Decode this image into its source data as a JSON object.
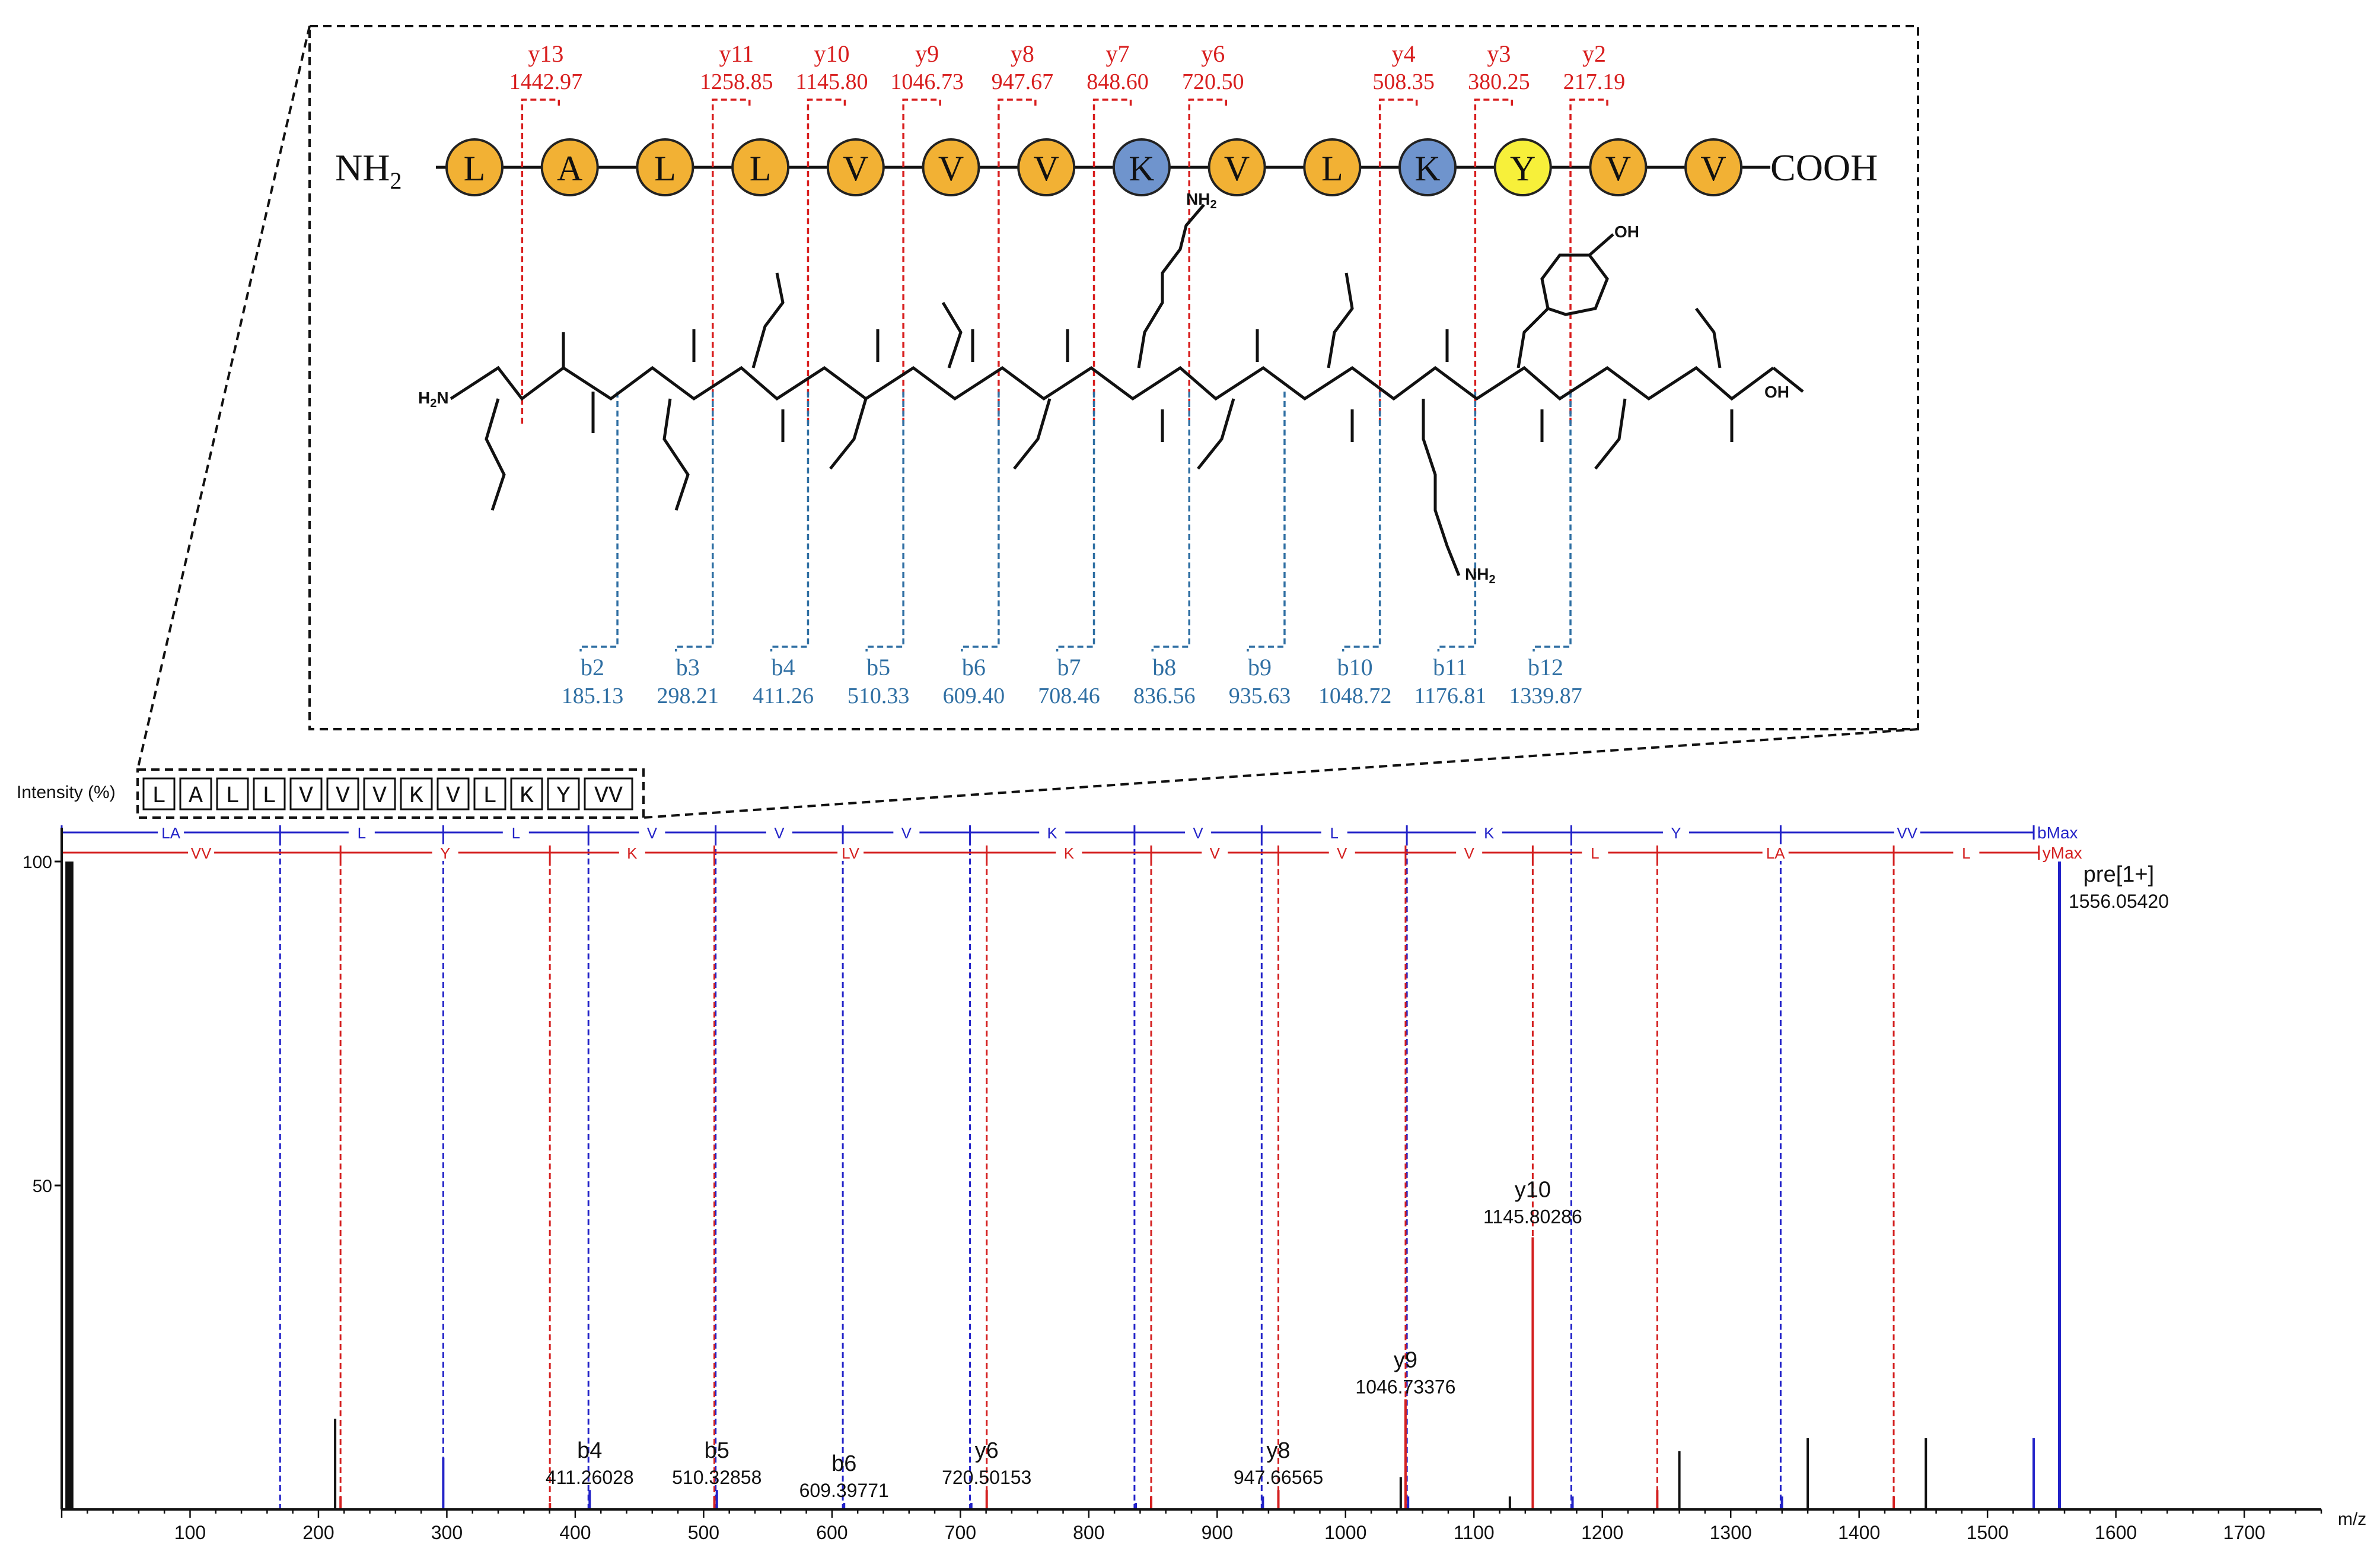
{
  "colors": {
    "y_ion": "#d81e1e",
    "b_ion": "#2f6fa3",
    "b_line": "#2323c8",
    "y_line": "#d42020",
    "peak": "#111111",
    "hydrophobic": "#f2b134",
    "basic": "#6f94cd",
    "aromatic": "#f7f03a"
  },
  "peptide": {
    "n_term": "NH",
    "n_term_sub": "2",
    "c_term": "COOH",
    "residues": [
      "L",
      "A",
      "L",
      "L",
      "V",
      "V",
      "V",
      "K",
      "V",
      "L",
      "K",
      "Y",
      "V",
      "V"
    ],
    "residue_kinds": [
      "hydrophobic",
      "hydrophobic",
      "hydrophobic",
      "hydrophobic",
      "hydrophobic",
      "hydrophobic",
      "hydrophobic",
      "basic",
      "hydrophobic",
      "hydrophobic",
      "basic",
      "aromatic",
      "hydrophobic",
      "hydrophobic"
    ]
  },
  "y_ions": [
    {
      "label": "y13",
      "mz": "1442.97",
      "after": 1
    },
    {
      "label": "y11",
      "mz": "1258.85",
      "after": 3
    },
    {
      "label": "y10",
      "mz": "1145.80",
      "after": 4
    },
    {
      "label": "y9",
      "mz": "1046.73",
      "after": 5
    },
    {
      "label": "y8",
      "mz": "947.67",
      "after": 6
    },
    {
      "label": "y7",
      "mz": "848.60",
      "after": 7
    },
    {
      "label": "y6",
      "mz": "720.50",
      "after": 8
    },
    {
      "label": "y4",
      "mz": "508.35",
      "after": 10
    },
    {
      "label": "y3",
      "mz": "380.25",
      "after": 11
    },
    {
      "label": "y2",
      "mz": "217.19",
      "after": 12
    }
  ],
  "b_ions": [
    {
      "label": "b2",
      "mz": "185.13",
      "after": 2
    },
    {
      "label": "b3",
      "mz": "298.21",
      "after": 3
    },
    {
      "label": "b4",
      "mz": "411.26",
      "after": 4
    },
    {
      "label": "b5",
      "mz": "510.33",
      "after": 5
    },
    {
      "label": "b6",
      "mz": "609.40",
      "after": 6
    },
    {
      "label": "b7",
      "mz": "708.46",
      "after": 7
    },
    {
      "label": "b8",
      "mz": "836.56",
      "after": 8
    },
    {
      "label": "b9",
      "mz": "935.63",
      "after": 9
    },
    {
      "label": "b10",
      "mz": "1048.72",
      "after": 10
    },
    {
      "label": "b11",
      "mz": "1176.81",
      "after": 11
    },
    {
      "label": "b12",
      "mz": "1339.87",
      "after": 12
    }
  ],
  "structure_labels": {
    "nh2_side": "NH",
    "nh2_sub": "2",
    "oh": "OH",
    "h": "H",
    "n": "N",
    "o": "O",
    "h2n": "H",
    "h2n_sub": "2",
    "h2n_n": "N"
  },
  "chart_data": {
    "type": "bar",
    "title": "",
    "ylabel": "Intensity (%)",
    "xlabel": "m/z",
    "xlim": [
      0,
      1760
    ],
    "ylim": [
      0,
      100
    ],
    "x_ticks": [
      100,
      200,
      300,
      400,
      500,
      600,
      700,
      800,
      900,
      1000,
      1100,
      1200,
      1300,
      1400,
      1500,
      1600,
      1700
    ],
    "y_ticks": [
      50,
      100
    ],
    "sequence_box": [
      "L",
      "A",
      "L",
      "L",
      "V",
      "V",
      "V",
      "K",
      "V",
      "L",
      "K",
      "Y",
      "VV"
    ],
    "b_ladder": {
      "label": "bMax",
      "boundaries": [
        0,
        170.13,
        297.21,
        410.3,
        509.36,
        608.43,
        707.5,
        835.6,
        934.66,
        1047.75,
        1175.84,
        1338.91,
        1536.0
      ],
      "segments": [
        "LA",
        "L",
        "L",
        "V",
        "V",
        "V",
        "K",
        "V",
        "L",
        "K",
        "Y",
        "VV"
      ]
    },
    "y_ladder": {
      "label": "yMax",
      "boundaries": [
        0,
        217.19,
        380.25,
        508.35,
        720.5,
        848.6,
        947.67,
        1046.73,
        1145.8,
        1242.81,
        1426.96,
        1540.0
      ],
      "segments": [
        "VV",
        "Y",
        "K",
        "LV",
        "K",
        "V",
        "V",
        "V",
        "L",
        "LA",
        "L"
      ]
    },
    "peaks": [
      {
        "mz": 4,
        "intensity": 100,
        "kind": "pre"
      },
      {
        "mz": 6,
        "intensity": 100,
        "kind": "pre"
      },
      {
        "mz": 8,
        "intensity": 100,
        "kind": "pre"
      },
      {
        "mz": 213,
        "intensity": 14,
        "kind": "other"
      },
      {
        "mz": 217.2,
        "intensity": 2,
        "kind": "y"
      },
      {
        "mz": 297.2,
        "intensity": 8,
        "kind": "b"
      },
      {
        "mz": 380.3,
        "intensity": 1,
        "kind": "y"
      },
      {
        "mz": 411.26,
        "intensity": 3,
        "kind": "b"
      },
      {
        "mz": 508.4,
        "intensity": 2,
        "kind": "y"
      },
      {
        "mz": 510.33,
        "intensity": 3,
        "kind": "b"
      },
      {
        "mz": 609.4,
        "intensity": 1,
        "kind": "b"
      },
      {
        "mz": 708.5,
        "intensity": 1,
        "kind": "b"
      },
      {
        "mz": 720.5,
        "intensity": 3,
        "kind": "y"
      },
      {
        "mz": 836.6,
        "intensity": 1,
        "kind": "b"
      },
      {
        "mz": 848.6,
        "intensity": 2,
        "kind": "y"
      },
      {
        "mz": 935.6,
        "intensity": 2,
        "kind": "b"
      },
      {
        "mz": 947.67,
        "intensity": 3,
        "kind": "y"
      },
      {
        "mz": 1043,
        "intensity": 5,
        "kind": "other"
      },
      {
        "mz": 1046.73,
        "intensity": 17,
        "kind": "y"
      },
      {
        "mz": 1048.7,
        "intensity": 2,
        "kind": "b"
      },
      {
        "mz": 1128,
        "intensity": 2,
        "kind": "other"
      },
      {
        "mz": 1145.8,
        "intensity": 42,
        "kind": "y"
      },
      {
        "mz": 1176.8,
        "intensity": 2,
        "kind": "b"
      },
      {
        "mz": 1242.8,
        "intensity": 3,
        "kind": "y"
      },
      {
        "mz": 1260,
        "intensity": 9,
        "kind": "other"
      },
      {
        "mz": 1339.9,
        "intensity": 2,
        "kind": "b"
      },
      {
        "mz": 1360,
        "intensity": 11,
        "kind": "other"
      },
      {
        "mz": 1427,
        "intensity": 2,
        "kind": "y"
      },
      {
        "mz": 1452,
        "intensity": 11,
        "kind": "other"
      },
      {
        "mz": 1536,
        "intensity": 11,
        "kind": "b"
      },
      {
        "mz": 1556.05,
        "intensity": 100,
        "kind": "pre"
      }
    ],
    "annotations": [
      {
        "name": "b4",
        "mz_text": "411.26028",
        "mz": 411.26,
        "intensity": 3
      },
      {
        "name": "b5",
        "mz_text": "510.32858",
        "mz": 510.33,
        "intensity": 3
      },
      {
        "name": "b6",
        "mz_text": "609.39771",
        "mz": 609.4,
        "intensity": 1
      },
      {
        "name": "y6",
        "mz_text": "720.50153",
        "mz": 720.5,
        "intensity": 3
      },
      {
        "name": "y8",
        "mz_text": "947.66565",
        "mz": 947.67,
        "intensity": 3
      },
      {
        "name": "y9",
        "mz_text": "1046.73376",
        "mz": 1046.73,
        "intensity": 17
      },
      {
        "name": "y10",
        "mz_text": "1145.80286",
        "mz": 1145.8,
        "intensity": 42
      },
      {
        "name": "pre[1+]",
        "mz_text": "1556.05420",
        "mz": 1556.05,
        "intensity": 100
      }
    ]
  }
}
